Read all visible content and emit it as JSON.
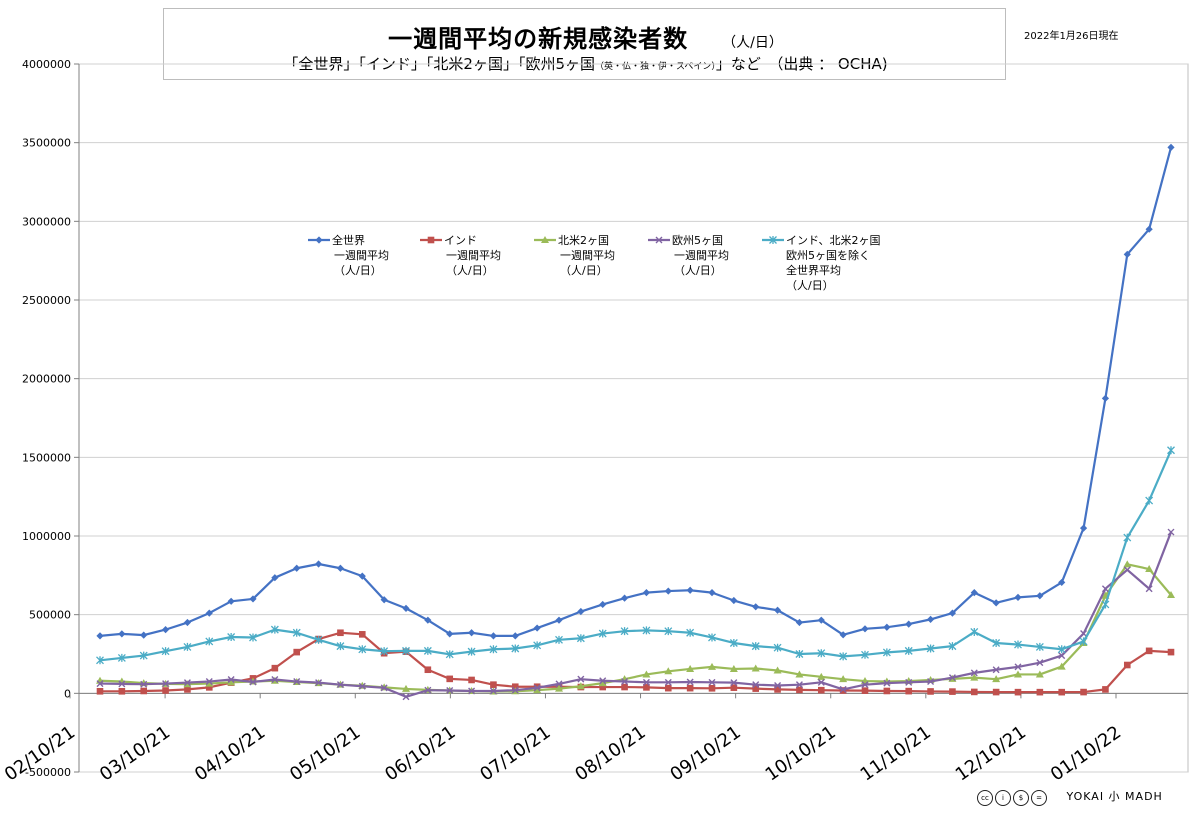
{
  "header": {
    "title": "一週間平均の新規感染者数",
    "title_unit": "（人/日）",
    "subtitle_main": "「全世界」「インド」「北米2ヶ国」「欧州5ヶ国",
    "subtitle_small": "（英・仏・独・伊・スペイン）",
    "subtitle_tail": "」など　（出典 ： OCHA)",
    "date_note": "2022年1月26日現在"
  },
  "footer": {
    "license_icons": [
      "cc",
      "by",
      "nc",
      "nd"
    ],
    "brand": "YOKAI 小 MADH"
  },
  "chart_data": {
    "type": "line",
    "ylim": [
      -500000,
      4000000
    ],
    "y_ticks": [
      -500000,
      0,
      500000,
      1000000,
      1500000,
      2000000,
      2500000,
      3000000,
      3500000,
      4000000
    ],
    "y_tick_labels": [
      "-500000",
      "0",
      "500000",
      "1000000",
      "1500000",
      "2000000",
      "2500000",
      "3000000",
      "3500000",
      "4000000"
    ],
    "x_tick_labels": [
      "02/10/21",
      "03/10/21",
      "04/10/21",
      "05/10/21",
      "06/10/21",
      "07/10/21",
      "08/10/21",
      "09/10/21",
      "10/10/21",
      "11/10/21",
      "12/10/21",
      "01/10/22"
    ],
    "grid": "horizontal",
    "legend_position": "top-center",
    "series": [
      {
        "name": "全世界\n一週間平均\n（人/日）",
        "color": "#4472C4",
        "marker": "diamond",
        "values": [
          365000,
          378000,
          370000,
          405000,
          450000,
          510000,
          585000,
          600000,
          735000,
          795000,
          822000,
          795000,
          745000,
          595000,
          540000,
          465000,
          378000,
          385000,
          365000,
          365000,
          415000,
          465000,
          520000,
          565000,
          605000,
          640000,
          650000,
          655000,
          640000,
          590000,
          550000,
          528000,
          450000,
          465000,
          372000,
          410000,
          420000,
          440000,
          470000,
          510000,
          640000,
          575000,
          610000,
          620000,
          705000,
          1050000,
          1875000,
          2790000,
          2950000,
          3470000
        ]
      },
      {
        "name": "インド\n一週間平均\n（人/日）",
        "color": "#C0504D",
        "marker": "square",
        "values": [
          13000,
          13000,
          15000,
          18000,
          25000,
          38000,
          68000,
          95000,
          160000,
          262000,
          345000,
          385000,
          375000,
          255000,
          265000,
          150000,
          92000,
          85000,
          55000,
          42000,
          42000,
          42000,
          40000,
          40000,
          40000,
          38000,
          33000,
          33000,
          32000,
          36000,
          30000,
          25000,
          22000,
          20000,
          18000,
          17000,
          15000,
          14000,
          12000,
          11000,
          9000,
          8000,
          7500,
          7500,
          7500,
          8000,
          25000,
          180000,
          270000,
          262000
        ]
      },
      {
        "name": "北米2ヶ国\n一週間平均\n（人/日）",
        "color": "#9BBB59",
        "marker": "triangle",
        "values": [
          80000,
          75000,
          65000,
          60000,
          58000,
          62000,
          70000,
          75000,
          80000,
          72000,
          65000,
          55000,
          48000,
          38000,
          28000,
          22000,
          18000,
          15000,
          12000,
          13000,
          20000,
          30000,
          45000,
          65000,
          90000,
          120000,
          140000,
          155000,
          168000,
          155000,
          158000,
          145000,
          120000,
          105000,
          90000,
          78000,
          75000,
          78000,
          85000,
          92000,
          100000,
          90000,
          120000,
          120000,
          170000,
          320000,
          620000,
          820000,
          790000,
          625000
        ]
      },
      {
        "name": "欧州5ヶ国\n一週間平均\n（人/日）",
        "color": "#8064A2",
        "marker": "x",
        "values": [
          62000,
          60000,
          58000,
          62000,
          68000,
          75000,
          88000,
          72000,
          88000,
          75000,
          68000,
          55000,
          45000,
          35000,
          -22000,
          20000,
          18000,
          15000,
          15000,
          20000,
          35000,
          60000,
          90000,
          80000,
          75000,
          70000,
          70000,
          72000,
          70000,
          68000,
          55000,
          50000,
          55000,
          70000,
          25000,
          55000,
          65000,
          70000,
          75000,
          100000,
          130000,
          150000,
          168000,
          195000,
          240000,
          380000,
          665000,
          785000,
          665000,
          1025000
        ]
      },
      {
        "name": "インド、北米2ヶ国\n欧州5ヶ国を除く\n全世界平均\n（人/日）",
        "color": "#4BACC6",
        "marker": "asterisk",
        "values": [
          210000,
          225000,
          240000,
          268000,
          295000,
          330000,
          358000,
          355000,
          405000,
          385000,
          340000,
          300000,
          280000,
          268000,
          270000,
          270000,
          248000,
          265000,
          280000,
          285000,
          305000,
          340000,
          350000,
          380000,
          395000,
          400000,
          395000,
          385000,
          355000,
          320000,
          300000,
          290000,
          250000,
          255000,
          235000,
          245000,
          260000,
          270000,
          285000,
          300000,
          390000,
          320000,
          310000,
          295000,
          280000,
          330000,
          565000,
          990000,
          1225000,
          1545000
        ]
      }
    ]
  }
}
